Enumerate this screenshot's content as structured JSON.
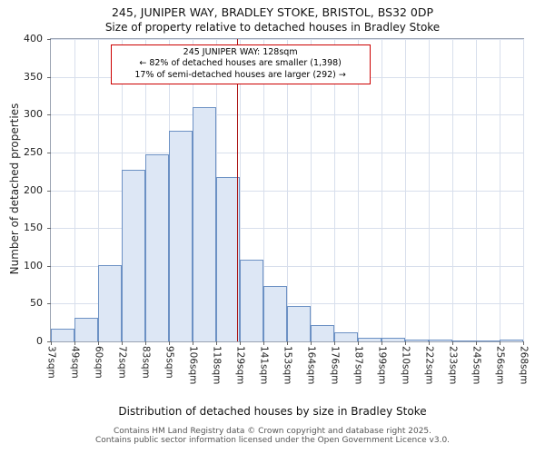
{
  "annotation": {
    "line1": "245 JUNIPER WAY: 128sqm",
    "line2": "← 82% of detached houses are smaller (1,398)",
    "line3": "17% of semi-detached houses are larger (292) →"
  },
  "footer": {
    "line1": "Contains HM Land Registry data © Crown copyright and database right 2025.",
    "line2": "Contains public sector information licensed under the Open Government Licence v3.0."
  },
  "chart_data": {
    "type": "bar",
    "title": "245, JUNIPER WAY, BRADLEY STOKE, BRISTOL, BS32 0DP",
    "subtitle": "Size of property relative to detached houses in Bradley Stoke",
    "xlabel": "Distribution of detached houses by size in Bradley Stoke",
    "ylabel": "Number of detached properties",
    "categories": [
      "37sqm",
      "49sqm",
      "60sqm",
      "72sqm",
      "83sqm",
      "95sqm",
      "106sqm",
      "118sqm",
      "129sqm",
      "141sqm",
      "153sqm",
      "164sqm",
      "176sqm",
      "187sqm",
      "199sqm",
      "210sqm",
      "222sqm",
      "233sqm",
      "245sqm",
      "256sqm",
      "268sqm"
    ],
    "values": [
      17,
      31,
      101,
      227,
      247,
      279,
      310,
      218,
      108,
      73,
      47,
      22,
      12,
      5,
      5,
      3,
      2,
      1,
      1,
      2
    ],
    "ylim": [
      0,
      400
    ],
    "yticks": [
      0,
      50,
      100,
      150,
      200,
      250,
      300,
      350,
      400
    ],
    "grid": true,
    "legend": false,
    "bar_fill": "#dde7f5",
    "bar_border": "#6c91c4",
    "marker": {
      "value_sqm": 128,
      "color": "#aa1111"
    },
    "annotation_border_color": "#cc0000"
  }
}
